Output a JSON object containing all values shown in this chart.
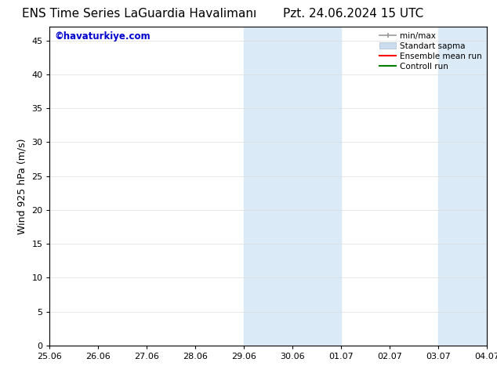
{
  "title_left": "ENS Time Series LaGuardia Havalimanı",
  "title_right": "Pzt. 24.06.2024 15 UTC",
  "ylabel": "Wind 925 hPa (m/s)",
  "watermark": "©havaturkiye.com",
  "watermark_color": "#0000cc",
  "yticks": [
    0,
    5,
    10,
    15,
    20,
    25,
    30,
    35,
    40,
    45
  ],
  "ymax": 47,
  "ymin": 0,
  "xtick_labels": [
    "25.06",
    "26.06",
    "27.06",
    "28.06",
    "29.06",
    "30.06",
    "01.07",
    "02.07",
    "03.07",
    "04.07"
  ],
  "weekend_bands": [
    {
      "xstart": 4,
      "xend": 6
    },
    {
      "xstart": 8,
      "xend": 10
    }
  ],
  "band_color": "#daeaf7",
  "background_color": "#ffffff",
  "plot_bg_color": "#ffffff",
  "legend_items": [
    {
      "label": "min/max",
      "color": "#aaaaaa"
    },
    {
      "label": "Standart sapma",
      "color": "#ccddef"
    },
    {
      "label": "Ensemble mean run",
      "color": "#ff0000"
    },
    {
      "label": "Controll run",
      "color": "#008000"
    }
  ],
  "title_fontsize": 11,
  "tick_fontsize": 8,
  "ylabel_fontsize": 9,
  "legend_fontsize": 7.5
}
